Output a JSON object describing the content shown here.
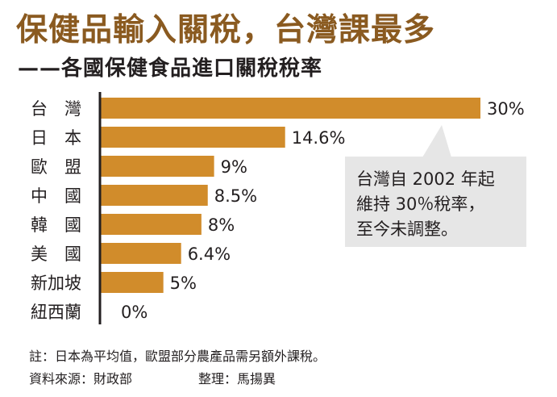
{
  "title": "保健品輸入關稅，台灣課最多",
  "subtitle": "——各國保健食品進口關稅稅率",
  "chart_data": {
    "type": "bar",
    "orientation": "horizontal",
    "title": "保健品輸入關稅，台灣課最多",
    "subtitle": "——各國保健食品進口關稅稅率",
    "categories": [
      "台　灣",
      "日　本",
      "歐　盟",
      "中　國",
      "韓　國",
      "美　國",
      "新加坡",
      "紐西蘭"
    ],
    "values": [
      30,
      14.6,
      9,
      8.5,
      8,
      6.4,
      5,
      0
    ],
    "value_labels": [
      "30%",
      "14.6%",
      "9%",
      "8.5%",
      "8%",
      "6.4%",
      "5%",
      "0%"
    ],
    "unit": "%",
    "xlim": [
      0,
      30
    ],
    "grid": false,
    "bar_color": "#d18c2b",
    "annotation": [
      "台灣自 2002 年起",
      "維持 30％稅率，",
      "至今未調整。"
    ]
  },
  "footer": {
    "note": "註：日本為平均值，歐盟部分農產品需另額外課稅。",
    "source": "資料來源：財政部",
    "editor": "整理：馬揚異"
  },
  "colors": {
    "title": "#8a5a20",
    "bar": "#d18c2b",
    "annotation_bg": "#e6e6e6",
    "text": "#231f20"
  }
}
